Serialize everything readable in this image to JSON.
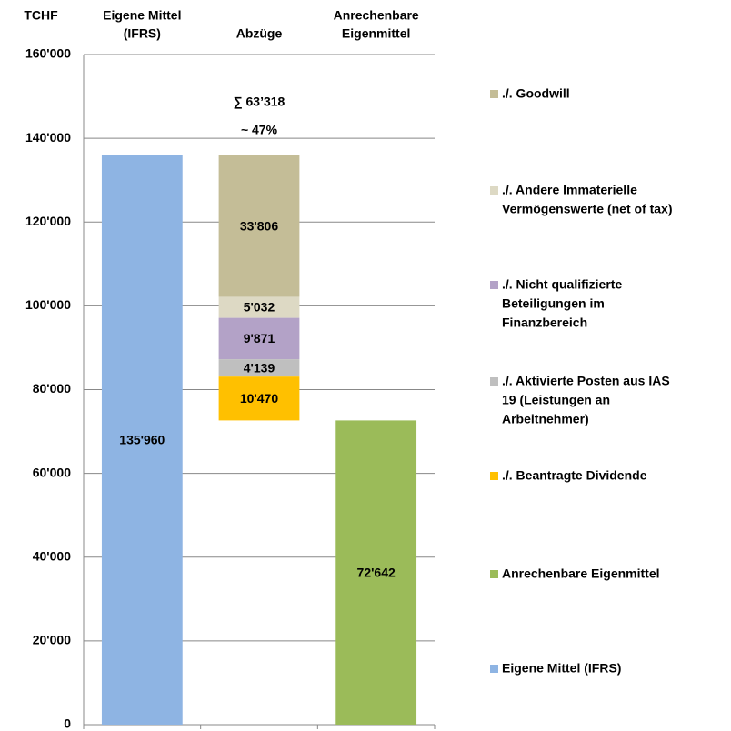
{
  "chart_data": {
    "type": "waterfall",
    "unit_label": "TCHF",
    "categories": [
      [
        "Eigene Mittel",
        "(IFRS)"
      ],
      [
        "Abzüge"
      ],
      [
        "Anrechenbare",
        "Eigenmittel"
      ]
    ],
    "annotation": [
      "∑ 63’318",
      "~ 47%"
    ],
    "annotation_color": "#c00000",
    "series": [
      {
        "name": [
          "./. Goodwill"
        ],
        "color": "#c4bd97",
        "values": [
          null,
          33806,
          null
        ],
        "value_labels": [
          null,
          "33'806",
          null
        ]
      },
      {
        "name": [
          "./. Andere Immaterielle",
          "Vermögenswerte (net of tax)"
        ],
        "color": "#ddd9c4",
        "values": [
          null,
          5032,
          null
        ],
        "value_labels": [
          null,
          "5'032",
          null
        ]
      },
      {
        "name": [
          "./. Nicht qualifizierte",
          "Beteiligungen im",
          "Finanzbereich"
        ],
        "color": "#b3a2c7",
        "values": [
          null,
          9871,
          null
        ],
        "value_labels": [
          null,
          "9'871",
          null
        ]
      },
      {
        "name": [
          "./. Aktivierte Posten aus IAS",
          "19 (Leistungen an",
          "Arbeitnehmer)"
        ],
        "color": "#bfbfbf",
        "values": [
          null,
          4139,
          null
        ],
        "value_labels": [
          null,
          "4'139",
          null
        ]
      },
      {
        "name": [
          "./. Beantragte Dividende"
        ],
        "color": "#ffc000",
        "values": [
          null,
          10470,
          null
        ],
        "value_labels": [
          null,
          "10'470",
          null
        ]
      },
      {
        "name": [
          "Anrechenbare Eigenmittel"
        ],
        "color": "#9bbb59",
        "values": [
          null,
          null,
          72642
        ],
        "value_labels": [
          null,
          null,
          "72'642"
        ]
      },
      {
        "name": [
          "Eigene Mittel (IFRS)"
        ],
        "color": "#8eb4e3",
        "values": [
          135960,
          null,
          null
        ],
        "value_labels": [
          "135'960",
          null,
          null
        ]
      }
    ],
    "ylim": [
      0,
      160000
    ],
    "yticks": [
      0,
      {
        "value": 20000,
        "label": "20'000"
      },
      {
        "value": 40000,
        "label": "40'000"
      },
      {
        "value": 60000,
        "label": "60'000"
      },
      {
        "value": 80000,
        "label": "80'000"
      },
      {
        "value": 100000,
        "label": "100'000"
      },
      {
        "value": 120000,
        "label": "120'000"
      },
      {
        "value": 140000,
        "label": "140'000"
      },
      {
        "value": 160000,
        "label": "160'000"
      }
    ],
    "grid": true
  }
}
